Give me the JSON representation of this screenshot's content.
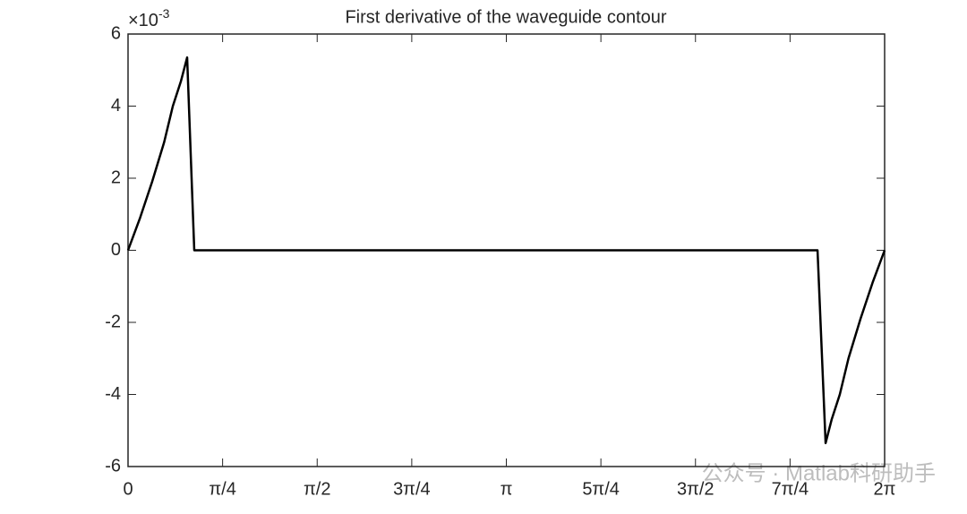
{
  "chart_data": {
    "type": "line",
    "title": "First derivative of the waveguide contour",
    "y_multiplier_base": "×10",
    "y_multiplier_exponent": "-3",
    "x": [
      0,
      0.1,
      0.2,
      0.3,
      0.372,
      0.44,
      0.4908,
      0.55,
      5.726,
      5.793,
      5.843,
      5.911,
      5.983,
      6.083,
      6.183,
      6.2832
    ],
    "values": [
      0,
      0.9,
      1.9,
      3.0,
      4.0,
      4.7,
      5.35,
      0,
      0,
      -5.35,
      -4.7,
      -4.0,
      -3.0,
      -1.9,
      -0.9,
      0
    ],
    "color": "#000000",
    "xlim": [
      0,
      6.2832
    ],
    "xticks": [
      0,
      {
        "value": 0.7854,
        "label": "π/4"
      },
      {
        "value": 1.5708,
        "label": "π/2"
      },
      {
        "value": 2.3562,
        "label": "3π/4"
      },
      {
        "value": 3.1416,
        "label": "π"
      },
      {
        "value": 3.927,
        "label": "5π/4"
      },
      {
        "value": 4.7124,
        "label": "3π/2"
      },
      {
        "value": 5.4978,
        "label": "7π/4"
      },
      {
        "value": 6.2832,
        "label": "2π"
      }
    ],
    "ylim": [
      -6,
      6
    ],
    "yticks": [
      -6,
      -4,
      -2,
      0,
      2,
      4,
      6
    ],
    "grid": false,
    "watermark": "公众号 · Matlab科研助手"
  }
}
